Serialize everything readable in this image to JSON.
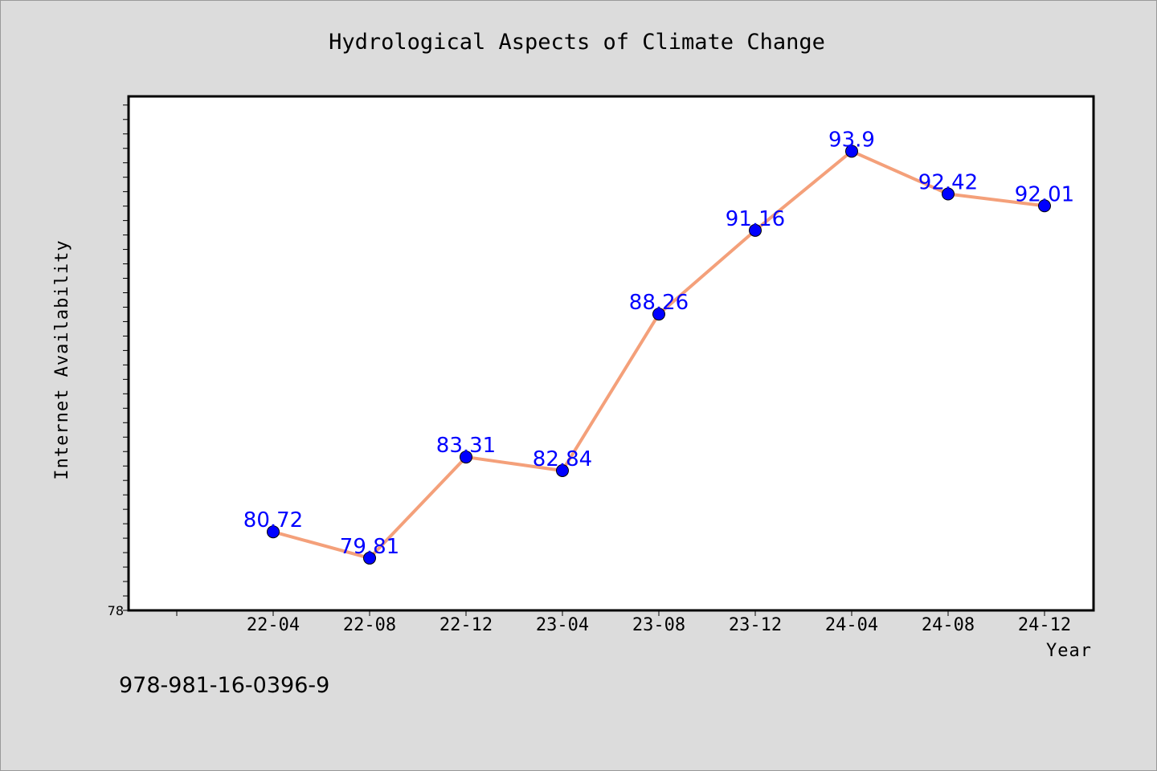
{
  "chart_data": {
    "type": "line",
    "title": "Hydrological Aspects of Climate Change",
    "xlabel": "Year",
    "ylabel": "Internet Availability",
    "categories": [
      "22-04",
      "22-08",
      "22-12",
      "23-04",
      "23-08",
      "23-12",
      "24-04",
      "24-08",
      "24-12"
    ],
    "series": [
      {
        "values": [
          80.72,
          79.81,
          83.31,
          82.84,
          88.26,
          91.16,
          93.9,
          92.42,
          92.01
        ],
        "line_color": "#f4a07a",
        "marker_color": "#0000ff"
      }
    ],
    "ylim": [
      78,
      95.8
    ],
    "yticks_labeled": [
      "78"
    ],
    "grid": false,
    "legend": "none"
  },
  "footer": {
    "isbn": "978-981-16-0396-9"
  }
}
